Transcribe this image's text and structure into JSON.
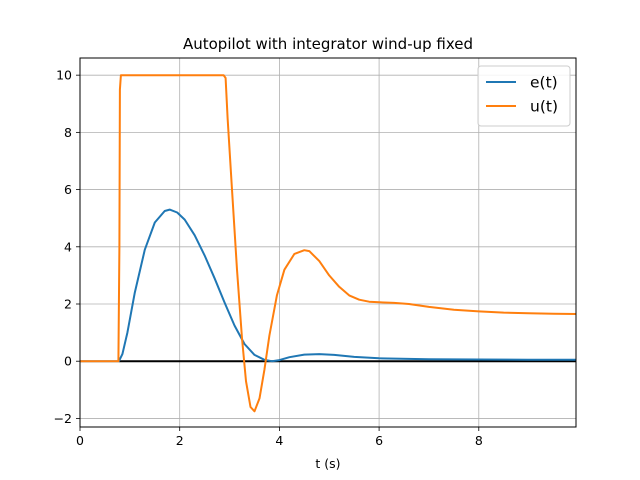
{
  "chart_data": {
    "type": "line",
    "title": "Autopilot with integrator wind-up fixed",
    "xlabel": "t (s)",
    "ylabel": "",
    "xlim": [
      0,
      9.95
    ],
    "ylim": [
      -2.3,
      10.6
    ],
    "xticks": [
      0,
      2,
      4,
      6,
      8
    ],
    "yticks": [
      -2,
      0,
      2,
      4,
      6,
      8,
      10
    ],
    "xtick_labels": [
      "0",
      "2",
      "4",
      "6",
      "8"
    ],
    "ytick_labels": [
      "−2",
      "0",
      "2",
      "4",
      "6",
      "8",
      "10"
    ],
    "grid": true,
    "legend_position": "top-right",
    "reference_line": {
      "y": 0,
      "color": "#000000"
    },
    "series": [
      {
        "name": "e(t)",
        "color": "#1f77b4",
        "x": [
          0,
          0.78,
          0.85,
          0.95,
          1.1,
          1.3,
          1.5,
          1.7,
          1.8,
          1.95,
          2.1,
          2.3,
          2.5,
          2.7,
          2.9,
          3.1,
          3.3,
          3.5,
          3.7,
          3.85,
          4.0,
          4.2,
          4.5,
          4.8,
          5.1,
          5.5,
          6.0,
          7.0,
          8.0,
          9.0,
          9.95
        ],
        "y": [
          0,
          0,
          0.25,
          1.0,
          2.4,
          3.9,
          4.85,
          5.25,
          5.3,
          5.2,
          4.95,
          4.4,
          3.7,
          2.9,
          2.05,
          1.25,
          0.6,
          0.22,
          0.05,
          0.0,
          0.04,
          0.14,
          0.23,
          0.25,
          0.22,
          0.15,
          0.1,
          0.07,
          0.06,
          0.05,
          0.05
        ]
      },
      {
        "name": "u(t)",
        "color": "#ff7f0e",
        "x": [
          0,
          0.77,
          0.79,
          0.8,
          0.82,
          2.88,
          2.92,
          2.96,
          3.05,
          3.15,
          3.25,
          3.33,
          3.42,
          3.5,
          3.6,
          3.7,
          3.8,
          3.95,
          4.1,
          4.3,
          4.5,
          4.6,
          4.8,
          5.0,
          5.2,
          5.4,
          5.6,
          5.8,
          6.0,
          6.3,
          6.6,
          7.0,
          7.5,
          8.0,
          8.5,
          9.0,
          9.5,
          9.95
        ],
        "y": [
          0,
          0,
          4.0,
          9.5,
          10.0,
          10.0,
          9.9,
          8.5,
          6.0,
          3.2,
          0.8,
          -0.7,
          -1.6,
          -1.75,
          -1.3,
          -0.3,
          0.9,
          2.3,
          3.2,
          3.75,
          3.88,
          3.85,
          3.5,
          3.0,
          2.6,
          2.3,
          2.15,
          2.08,
          2.06,
          2.04,
          2.0,
          1.9,
          1.8,
          1.74,
          1.7,
          1.68,
          1.66,
          1.65
        ]
      }
    ]
  }
}
